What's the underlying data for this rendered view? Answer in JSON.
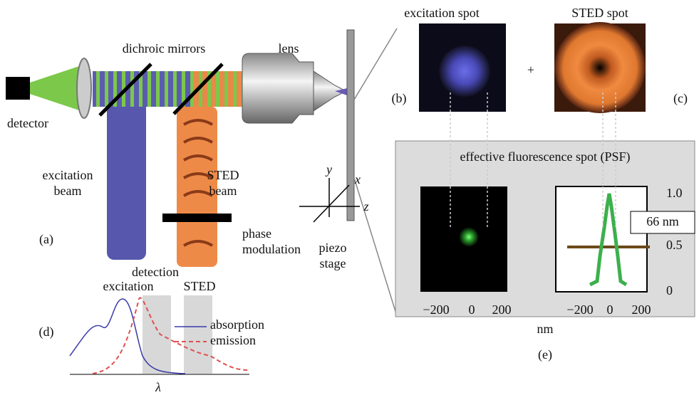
{
  "labels": {
    "excitation_spot": "excitation spot",
    "sted_spot": "STED spot",
    "dichroic_mirrors": "dichroic mirrors",
    "lens": "lens",
    "detector": "detector",
    "panel_b": "(b)",
    "plus": "+",
    "panel_c": "(c)",
    "psf_title": "effective fluorescence spot (PSF)",
    "excitation_beam": [
      "excitation",
      "beam"
    ],
    "sted_beam": [
      "STED",
      "beam"
    ],
    "axis_y": "y",
    "axis_x": "x",
    "axis_z": "z",
    "panel_a": "(a)",
    "phase_modulation": [
      "phase",
      "modulation"
    ],
    "piezo_stage": [
      "piezo",
      "stage"
    ],
    "detection": "detection",
    "excitation": "excitation",
    "sted": "STED",
    "panel_d": "(d)",
    "absorption": "absorption",
    "emission": "emission",
    "lambda": "λ",
    "profile_yticks": [
      "1.0",
      "0.5",
      "0"
    ],
    "width_label": "66 nm",
    "spot_xticks": [
      "−200",
      "0",
      "200"
    ],
    "profile_xticks": [
      "−200",
      "0",
      "200"
    ],
    "x_unit": "nm",
    "panel_e": "(e)"
  }
}
